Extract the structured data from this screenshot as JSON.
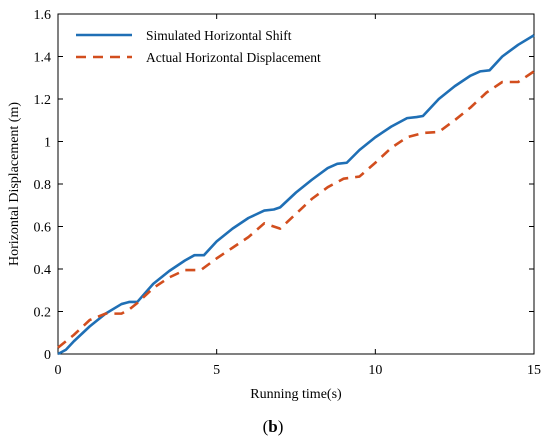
{
  "chart_data": {
    "type": "line",
    "xlabel": "Running time(s)",
    "ylabel": "Horizontal Displacement (m)",
    "xlim": [
      0,
      15
    ],
    "ylim": [
      0,
      1.6
    ],
    "x_ticks": [
      0,
      5,
      10,
      15
    ],
    "x_tick_labels": [
      "0",
      "5",
      "10",
      "15"
    ],
    "y_ticks": [
      0,
      0.2,
      0.4,
      0.6,
      0.8,
      1,
      1.2,
      1.4,
      1.6
    ],
    "y_tick_labels": [
      "0",
      "0.2",
      "0.4",
      "0.6",
      "0.8",
      "1",
      "1.2",
      "1.4",
      "1.6"
    ],
    "grid": false,
    "legend_position": "top-left",
    "panel_label": "b",
    "series": [
      {
        "name": "Simulated Horizontal Shift",
        "style": "solid",
        "color": "#1f6fb5",
        "x": [
          0,
          0.25,
          0.5,
          1,
          1.5,
          2,
          2.25,
          2.5,
          3,
          3.5,
          4,
          4.3,
          4.6,
          5,
          5.5,
          6,
          6.5,
          6.8,
          7,
          7.5,
          8,
          8.5,
          8.8,
          9.1,
          9.5,
          10,
          10.5,
          11,
          11.3,
          11.5,
          12,
          12.5,
          13,
          13.3,
          13.6,
          14,
          14.5,
          15
        ],
        "y": [
          0.0,
          0.02,
          0.06,
          0.13,
          0.19,
          0.235,
          0.245,
          0.245,
          0.33,
          0.39,
          0.44,
          0.465,
          0.465,
          0.53,
          0.59,
          0.64,
          0.675,
          0.68,
          0.69,
          0.76,
          0.82,
          0.875,
          0.895,
          0.9,
          0.96,
          1.02,
          1.07,
          1.11,
          1.115,
          1.12,
          1.2,
          1.26,
          1.31,
          1.33,
          1.335,
          1.4,
          1.455,
          1.5
        ]
      },
      {
        "name": "Actual Horizontal Displacement",
        "style": "dashed",
        "color": "#d24e1e",
        "x": [
          0,
          0.5,
          1,
          1.5,
          2,
          2.25,
          2.5,
          3,
          3.5,
          4,
          4.5,
          5,
          5.5,
          6,
          6.5,
          7,
          7.5,
          8,
          8.5,
          9,
          9.5,
          10,
          10.5,
          11,
          11.5,
          12,
          12.5,
          13,
          13.5,
          14,
          14.5,
          15
        ],
        "y": [
          0.03,
          0.09,
          0.16,
          0.19,
          0.19,
          0.21,
          0.24,
          0.31,
          0.36,
          0.395,
          0.395,
          0.45,
          0.5,
          0.55,
          0.615,
          0.59,
          0.66,
          0.73,
          0.785,
          0.825,
          0.835,
          0.9,
          0.97,
          1.02,
          1.04,
          1.045,
          1.1,
          1.16,
          1.23,
          1.28,
          1.28,
          1.33
        ]
      }
    ]
  }
}
